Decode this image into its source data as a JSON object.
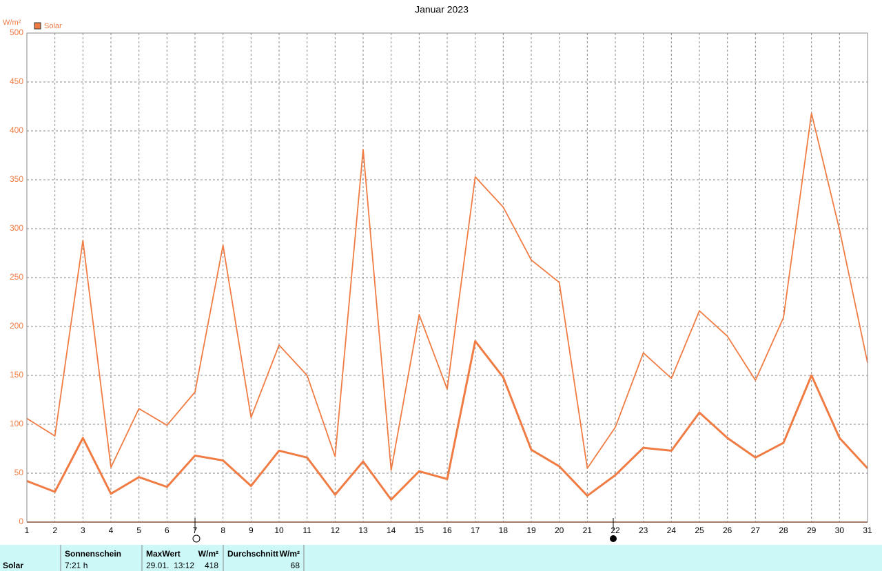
{
  "chart_data": {
    "type": "line",
    "title": "Januar 2023",
    "y_unit": "W/m²",
    "x": [
      1,
      2,
      3,
      4,
      5,
      6,
      7,
      8,
      9,
      10,
      11,
      12,
      13,
      14,
      15,
      16,
      17,
      18,
      19,
      20,
      21,
      22,
      23,
      24,
      25,
      26,
      27,
      28,
      29,
      30,
      31
    ],
    "xlim": [
      1,
      31
    ],
    "xticks": [
      1,
      2,
      3,
      4,
      5,
      6,
      7,
      8,
      9,
      10,
      11,
      12,
      13,
      14,
      15,
      16,
      17,
      18,
      19,
      20,
      21,
      22,
      23,
      24,
      25,
      26,
      27,
      28,
      29,
      30,
      31
    ],
    "ylim": [
      0,
      500
    ],
    "yticks": [
      0,
      50,
      100,
      150,
      200,
      250,
      300,
      350,
      400,
      450,
      500
    ],
    "grid": true,
    "legend": "top-left",
    "series": [
      {
        "name": "Solar",
        "color": "#f07c44",
        "width": 1.8,
        "values": [
          106,
          88,
          288,
          56,
          116,
          99,
          133,
          283,
          107,
          181,
          150,
          67,
          381,
          53,
          212,
          136,
          353,
          322,
          268,
          245,
          55,
          97,
          173,
          147,
          216,
          190,
          145,
          209,
          418,
          299,
          163
        ]
      },
      {
        "color": "#f07c44",
        "width": 3,
        "values": [
          42,
          31,
          86,
          29,
          46,
          36,
          68,
          63,
          37,
          73,
          66,
          28,
          62,
          23,
          52,
          44,
          185,
          148,
          74,
          57,
          27,
          48,
          76,
          73,
          112,
          86,
          66,
          81,
          150,
          86,
          55
        ]
      }
    ]
  },
  "table": {
    "row_label": "Solar",
    "sunshine": {
      "header": "Sonnenschein",
      "value": "7:21 h"
    },
    "max": {
      "header": "MaxWert",
      "unit": "W/m²",
      "time": "29.01.  13:12",
      "value": 418
    },
    "avg": {
      "header": "Durchschnitt",
      "unit": "W/m²",
      "value": 68
    }
  }
}
